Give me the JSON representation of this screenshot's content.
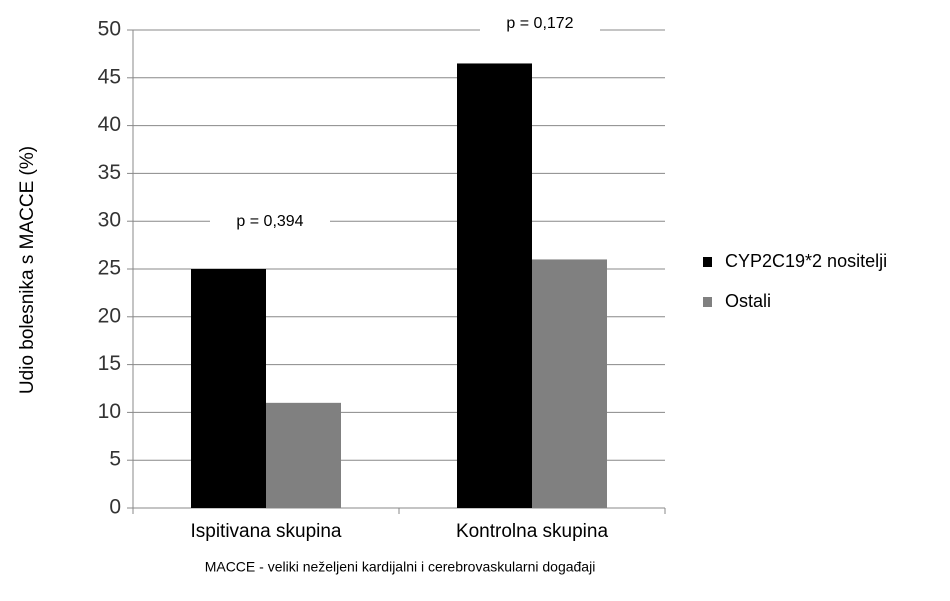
{
  "chart_data": {
    "type": "bar",
    "y_label": "Udio bolesnika s MACCE (%)",
    "footnote": "MACCE - veliki neželjeni kardijalni i cerebrovaskularni događaji",
    "categories": [
      "Ispitivana skupina",
      "Kontrolna skupina"
    ],
    "series": [
      {
        "name": "CYP2C19*2 nositelji",
        "color": "#000000",
        "values": [
          25,
          46.5
        ]
      },
      {
        "name": "Ostali",
        "color": "#808080",
        "values": [
          11,
          26
        ]
      }
    ],
    "annotations": [
      "p = 0,394",
      "p = 0,172"
    ],
    "ylim": [
      0,
      50
    ],
    "yticks": [
      0,
      5,
      10,
      15,
      20,
      25,
      30,
      35,
      40,
      45,
      50
    ],
    "grid": true,
    "legend": "right"
  }
}
